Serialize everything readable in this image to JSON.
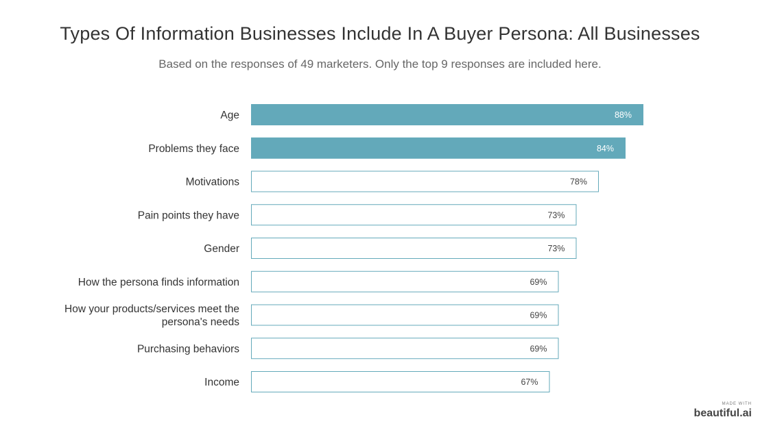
{
  "chart_data": {
    "type": "bar",
    "orientation": "horizontal",
    "title": "Types Of Information Businesses Include In A Buyer Persona: All Businesses",
    "subtitle": "Based on the responses of 49 marketers. Only the top 9 responses are included here.",
    "categories": [
      "Age",
      "Problems they face",
      "Motivations",
      "Pain points they have",
      "Gender",
      "How the persona finds information",
      "How your products/services meet the persona's needs",
      "Purchasing behaviors",
      "Income"
    ],
    "category_lines": [
      [
        "Age"
      ],
      [
        "Problems they face"
      ],
      [
        "Motivations"
      ],
      [
        "Pain points they have"
      ],
      [
        "Gender"
      ],
      [
        "How the persona finds information"
      ],
      [
        "How your products/services meet the",
        "persona's needs"
      ],
      [
        "Purchasing behaviors"
      ],
      [
        "Income"
      ]
    ],
    "values": [
      88,
      84,
      78,
      73,
      73,
      69,
      69,
      69,
      67
    ],
    "value_labels": [
      "88%",
      "84%",
      "78%",
      "73%",
      "73%",
      "69%",
      "69%",
      "69%",
      "67%"
    ],
    "highlighted": [
      true,
      true,
      false,
      false,
      false,
      false,
      false,
      false,
      false
    ],
    "xlim": [
      0,
      100
    ],
    "unit": "%",
    "grid": false,
    "legend": "none",
    "colors": {
      "highlight_fill": "#63a9ba",
      "outline": "#63a9ba",
      "plain_fill": "#ffffff",
      "highlight_text": "#ffffff",
      "plain_text": "#444444"
    }
  },
  "watermark": {
    "made_with": "MADE WITH",
    "brand": "beautiful.ai"
  }
}
